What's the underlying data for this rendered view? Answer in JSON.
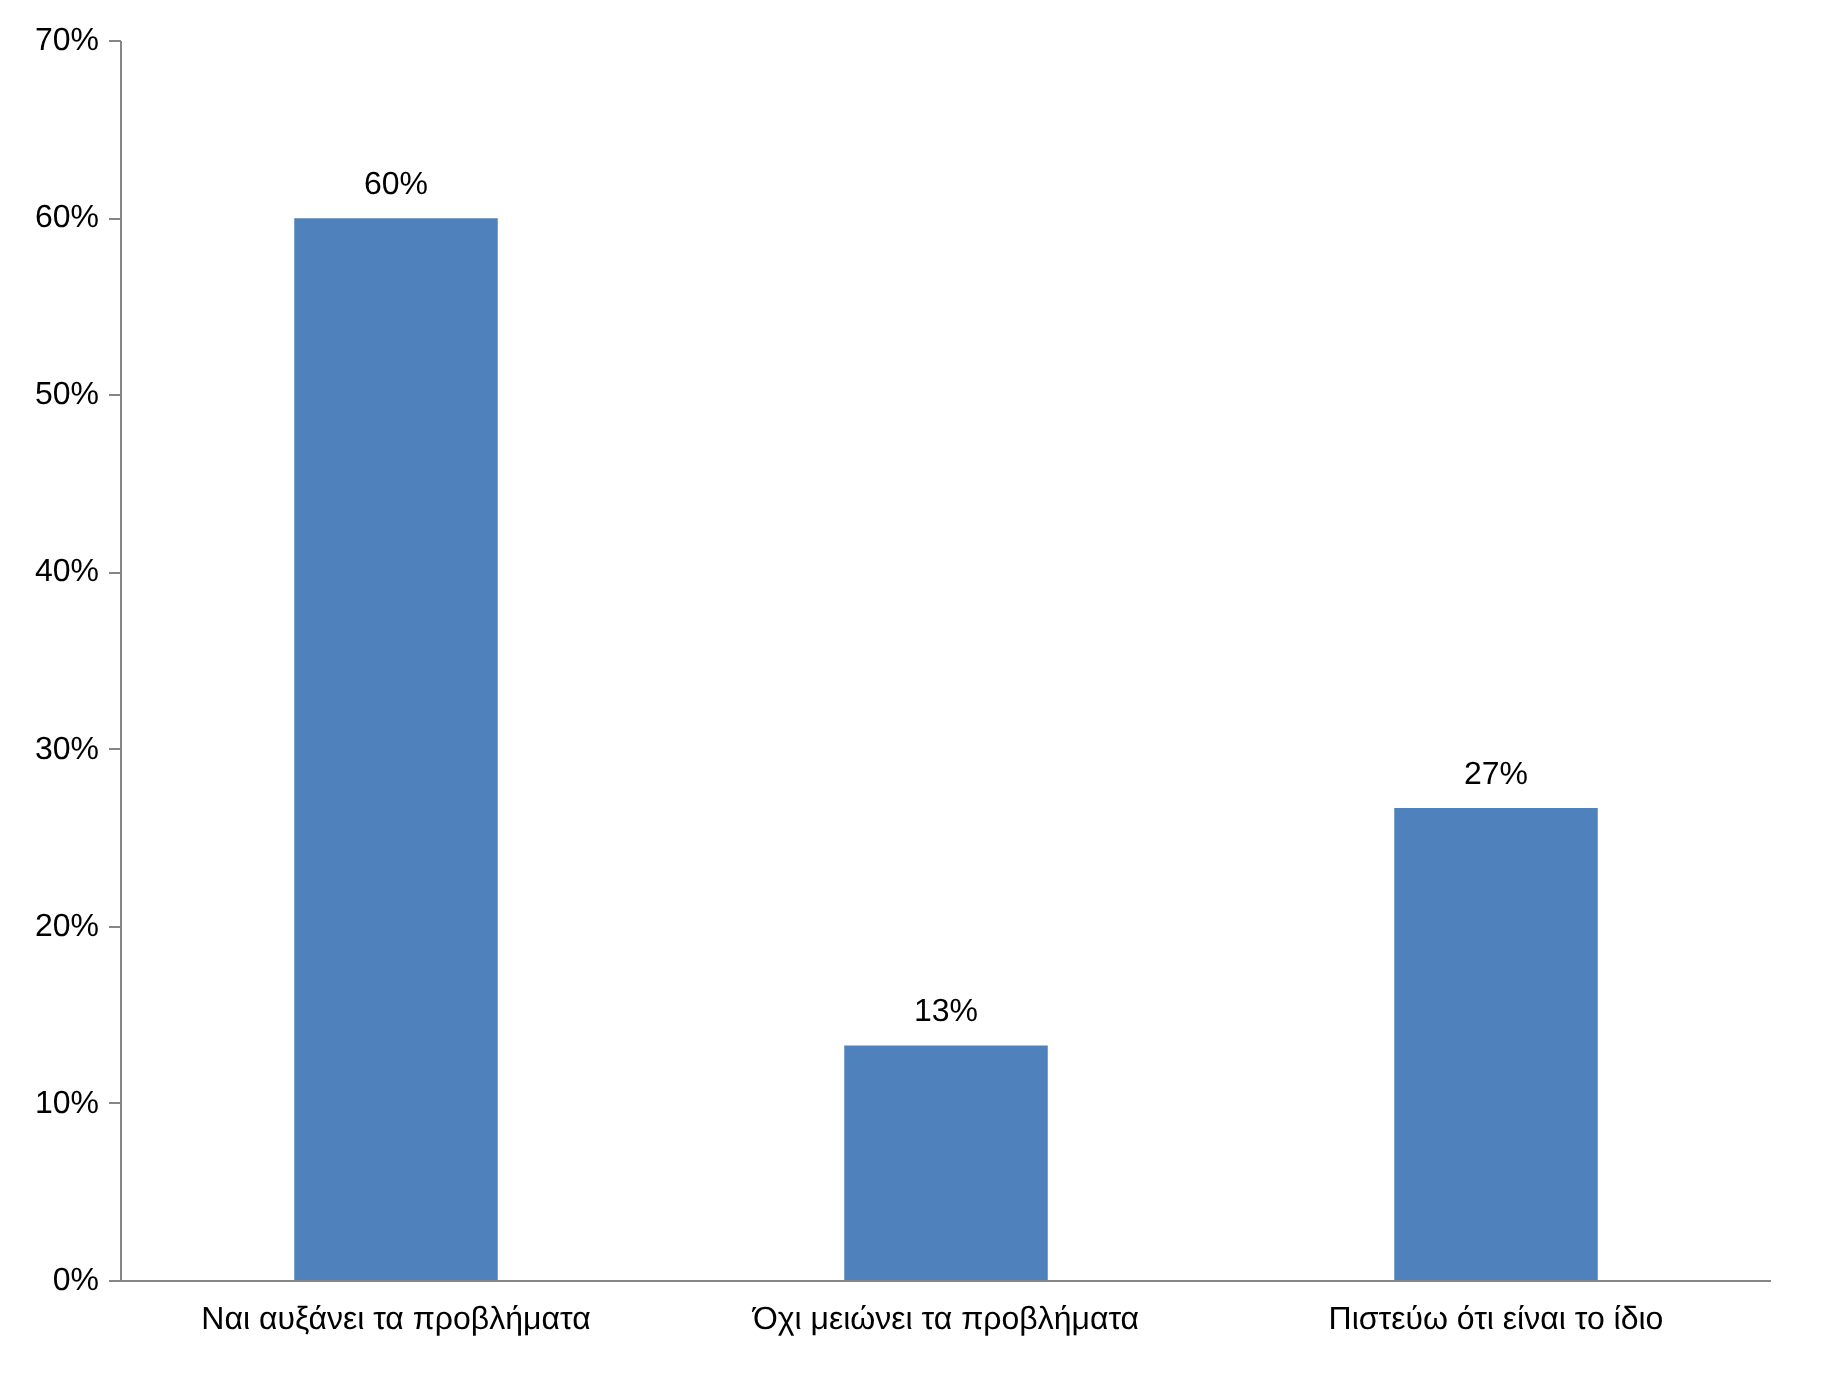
{
  "chart_data": {
    "type": "bar",
    "categories": [
      "Ναι αυξάνει τα προβλήματα",
      "Όχι μειώνει τα προβλήματα",
      "Πιστεύω ότι είναι το ίδιο"
    ],
    "values": [
      60,
      13.3,
      26.7
    ],
    "value_labels": [
      "60%",
      "13%",
      "27%"
    ],
    "color": "#4f81bd",
    "ylim": [
      0,
      70
    ],
    "yticks": [
      {
        "value": 0,
        "label": "0%"
      },
      {
        "value": 10,
        "label": "10%"
      },
      {
        "value": 20,
        "label": "20%"
      },
      {
        "value": 30,
        "label": "30%"
      },
      {
        "value": 40,
        "label": "40%"
      },
      {
        "value": 50,
        "label": "50%"
      },
      {
        "value": 60,
        "label": "60%"
      },
      {
        "value": 70,
        "label": "70%"
      }
    ],
    "grid": false
  }
}
